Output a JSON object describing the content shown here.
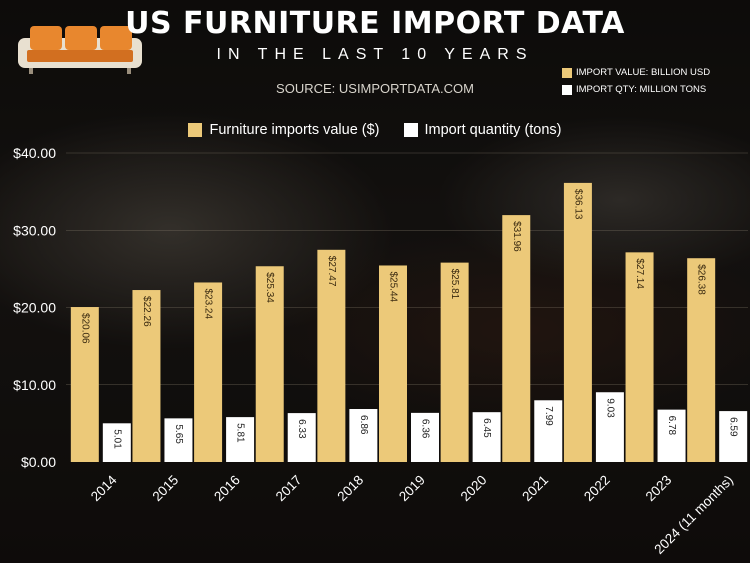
{
  "header": {
    "title": "US FURNITURE IMPORT DATA",
    "subtitle": "IN THE LAST 10 YEARS",
    "source": "SOURCE: USIMPORTDATA.COM"
  },
  "side_legend": {
    "value_label": "IMPORT VALUE: BILLION USD",
    "qty_label": "IMPORT QTY: MILLION TONS"
  },
  "colors": {
    "value": "#ecc979",
    "quantity": "#ffffff",
    "value_label_text": "#3a2a10",
    "qty_label_text": "#222222",
    "axis_text": "#ffffff",
    "grid": "#8a8070"
  },
  "icons": {
    "logo": "sofa-icon"
  },
  "chart_data": {
    "type": "bar",
    "categories": [
      "2014",
      "2015",
      "2016",
      "2017",
      "2018",
      "2019",
      "2020",
      "2021",
      "2022",
      "2023",
      "2024 (11 months)"
    ],
    "series": [
      {
        "name": "Furniture imports value ($)",
        "values": [
          20.06,
          22.26,
          23.24,
          25.34,
          27.47,
          25.44,
          25.81,
          31.96,
          36.13,
          27.14,
          26.38
        ]
      },
      {
        "name": "Import quantity (tons)",
        "values": [
          5.01,
          5.65,
          5.81,
          6.33,
          6.86,
          6.36,
          6.45,
          7.99,
          9.03,
          6.78,
          6.59
        ]
      }
    ],
    "y_ticks": [
      "$0.00",
      "$10.00",
      "$20.00",
      "$30.00",
      "$40.00"
    ],
    "ylim": [
      0,
      40
    ],
    "legend_position": "top-center",
    "grid": true
  }
}
